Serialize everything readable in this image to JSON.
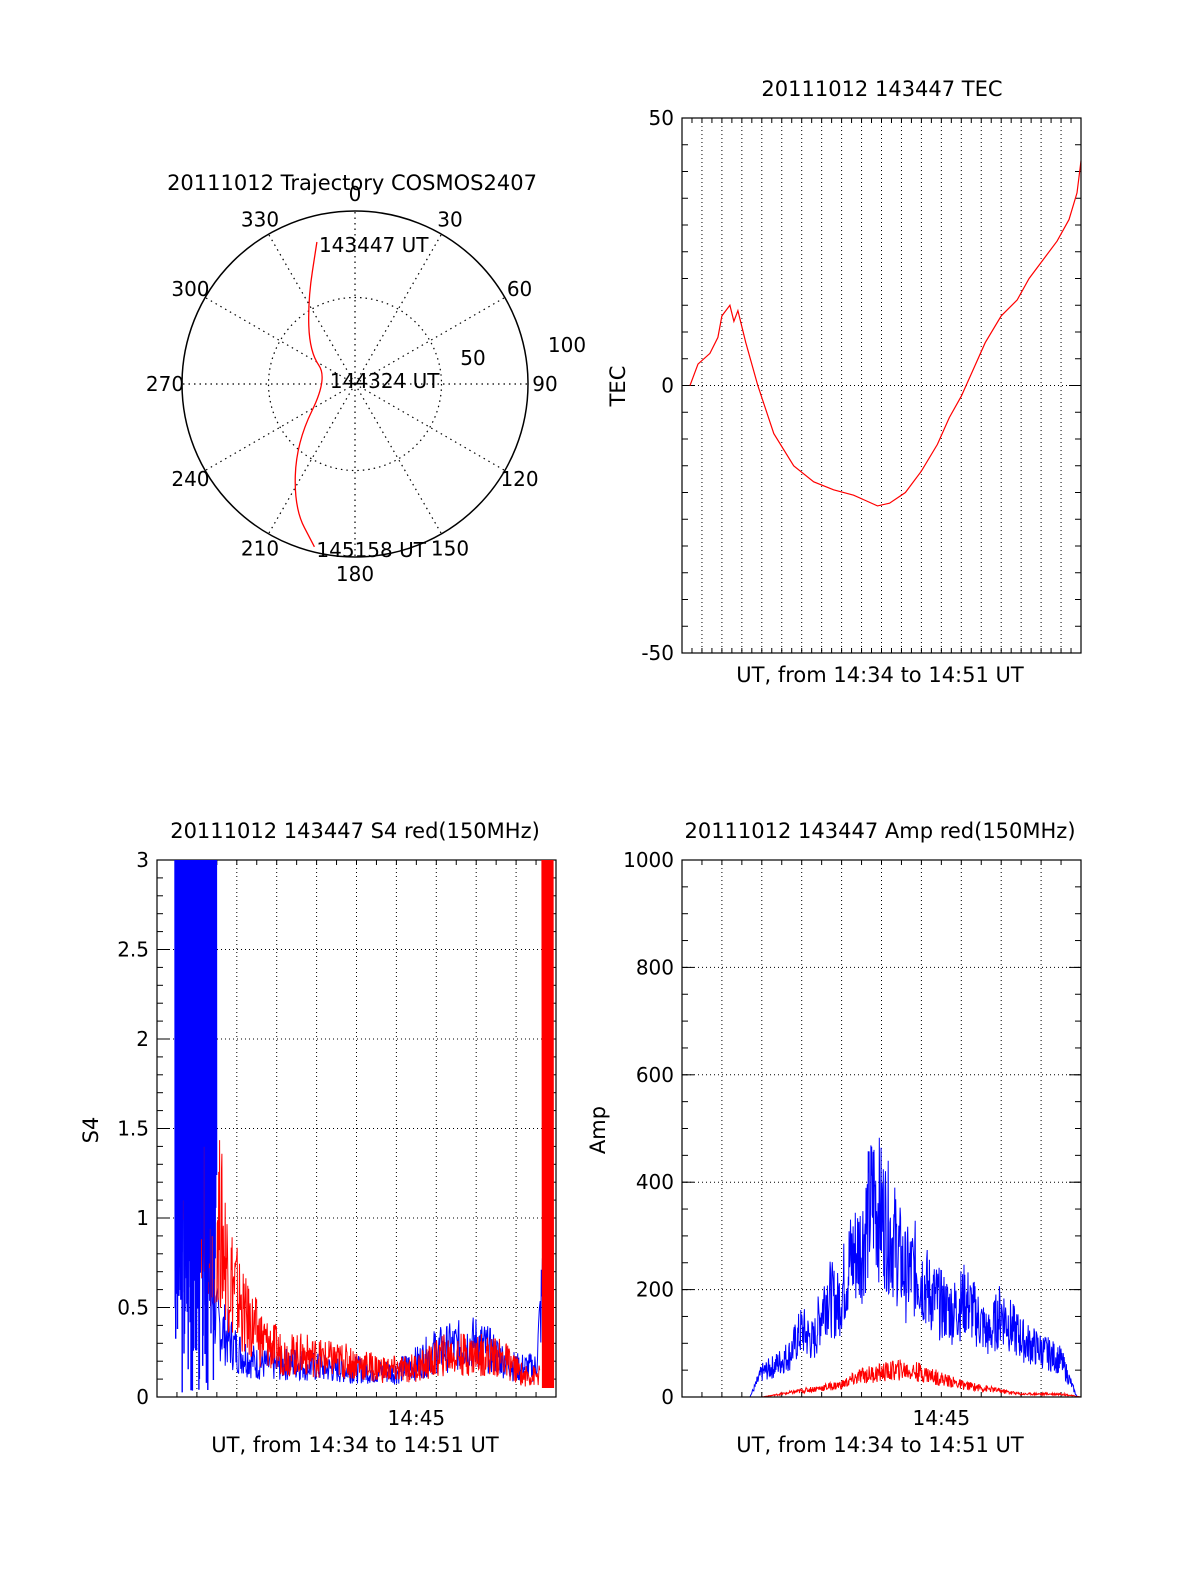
{
  "colors": {
    "red": "#ff0000",
    "blue": "#0000ff",
    "axis": "#000000",
    "grid": "#000000"
  },
  "chart_data": [
    {
      "id": "trajectory",
      "type": "polar",
      "title": "20111012 Trajectory COSMOS2407",
      "angle_labels": [
        "0",
        "30",
        "60",
        "90",
        "120",
        "150",
        "180",
        "210",
        "240",
        "270",
        "300",
        "330"
      ],
      "radial_labels": [
        "50",
        "100"
      ],
      "point_labels": [
        {
          "name": "start",
          "text": "143447 UT",
          "az": 345,
          "r": 85
        },
        {
          "name": "mid",
          "text": "144324 UT",
          "az": 282,
          "r": 16
        },
        {
          "name": "end",
          "text": "145158 UT",
          "az": 194,
          "r": 97
        }
      ],
      "trajectory_points": [
        [
          345,
          85
        ],
        [
          331,
          56
        ],
        [
          305,
          32
        ],
        [
          282,
          16
        ],
        [
          225,
          48
        ],
        [
          206,
          80
        ],
        [
          194,
          97
        ]
      ],
      "series_color": "red"
    },
    {
      "id": "tec",
      "type": "line",
      "title": "20111012 143447 TEC",
      "xlabel": "UT, from 14:34 to 14:51 UT",
      "ylabel": "TEC",
      "ylim": [
        -50,
        50
      ],
      "yticks": [
        "50",
        "0",
        "-50"
      ],
      "xlim": [
        0,
        1
      ],
      "grid": "x-dotted, y-zero-dotted",
      "series": [
        {
          "color": "red",
          "points": [
            [
              0.02,
              0
            ],
            [
              0.04,
              4
            ],
            [
              0.07,
              6
            ],
            [
              0.09,
              9
            ],
            [
              0.1,
              13
            ],
            [
              0.12,
              15
            ],
            [
              0.13,
              12
            ],
            [
              0.14,
              14
            ],
            [
              0.16,
              8
            ],
            [
              0.19,
              0
            ],
            [
              0.23,
              -9
            ],
            [
              0.28,
              -15
            ],
            [
              0.33,
              -18
            ],
            [
              0.38,
              -19.5
            ],
            [
              0.43,
              -20.5
            ],
            [
              0.46,
              -21.5
            ],
            [
              0.49,
              -22.5
            ],
            [
              0.52,
              -22
            ],
            [
              0.56,
              -20
            ],
            [
              0.6,
              -16
            ],
            [
              0.64,
              -11
            ],
            [
              0.67,
              -6
            ],
            [
              0.7,
              -2
            ],
            [
              0.73,
              3
            ],
            [
              0.76,
              8
            ],
            [
              0.8,
              13
            ],
            [
              0.84,
              16
            ],
            [
              0.87,
              20
            ],
            [
              0.91,
              24
            ],
            [
              0.94,
              27
            ],
            [
              0.97,
              31
            ],
            [
              0.99,
              36
            ],
            [
              1.0,
              42
            ]
          ]
        }
      ]
    },
    {
      "id": "s4",
      "type": "line",
      "title": "20111012 143447 S4 red(150MHz)",
      "xlabel": "UT, from 14:34 to 14:51 UT",
      "ylabel": "S4",
      "ylim": [
        0,
        3
      ],
      "yticks": [
        "0",
        "0.5",
        "1",
        "1.5",
        "2",
        "2.5",
        "3"
      ],
      "xticks": [
        "14:45"
      ],
      "xlim": [
        0,
        1
      ],
      "grid": "both dotted",
      "series": [
        {
          "color": "blue",
          "points": [
            [
              0.05,
              0.9
            ],
            [
              0.08,
              0.85
            ],
            [
              0.11,
              0.8
            ],
            [
              0.15,
              0.35
            ],
            [
              0.2,
              0.22
            ],
            [
              0.25,
              0.16
            ],
            [
              0.3,
              0.15
            ],
            [
              0.35,
              0.16
            ],
            [
              0.4,
              0.14
            ],
            [
              0.45,
              0.13
            ],
            [
              0.5,
              0.13
            ],
            [
              0.55,
              0.12
            ],
            [
              0.6,
              0.12
            ],
            [
              0.65,
              0.16
            ],
            [
              0.7,
              0.22
            ],
            [
              0.75,
              0.24
            ],
            [
              0.8,
              0.26
            ],
            [
              0.85,
              0.2
            ],
            [
              0.9,
              0.14
            ],
            [
              0.95,
              0.14
            ],
            [
              0.97,
              0.6
            ],
            [
              0.98,
              1.3
            ],
            [
              0.99,
              1.0
            ]
          ]
        },
        {
          "color": "red",
          "points": [
            [
              0.15,
              0.9
            ],
            [
              0.18,
              0.6
            ],
            [
              0.22,
              0.38
            ],
            [
              0.27,
              0.26
            ],
            [
              0.32,
              0.2
            ],
            [
              0.37,
              0.2
            ],
            [
              0.42,
              0.18
            ],
            [
              0.47,
              0.17
            ],
            [
              0.52,
              0.15
            ],
            [
              0.57,
              0.13
            ],
            [
              0.62,
              0.13
            ],
            [
              0.67,
              0.15
            ],
            [
              0.72,
              0.2
            ],
            [
              0.77,
              0.2
            ],
            [
              0.82,
              0.2
            ],
            [
              0.87,
              0.18
            ],
            [
              0.92,
              0.1
            ],
            [
              0.96,
              0.1
            ]
          ]
        }
      ]
    },
    {
      "id": "amp",
      "type": "line",
      "title": "20111012 143447 Amp red(150MHz)",
      "xlabel": "UT, from 14:34 to 14:51 UT",
      "ylabel": "Amp",
      "ylim": [
        0,
        1000
      ],
      "yticks": [
        "0",
        "200",
        "400",
        "600",
        "800",
        "1000"
      ],
      "xticks": [
        "14:45"
      ],
      "xlim": [
        0,
        1
      ],
      "grid": "both dotted",
      "series": [
        {
          "color": "blue",
          "points": [
            [
              0.0,
              0
            ],
            [
              0.17,
              0
            ],
            [
              0.2,
              40
            ],
            [
              0.23,
              50
            ],
            [
              0.27,
              70
            ],
            [
              0.3,
              110
            ],
            [
              0.33,
              90
            ],
            [
              0.36,
              170
            ],
            [
              0.39,
              150
            ],
            [
              0.42,
              220
            ],
            [
              0.45,
              250
            ],
            [
              0.48,
              330
            ],
            [
              0.5,
              300
            ],
            [
              0.53,
              260
            ],
            [
              0.56,
              200
            ],
            [
              0.59,
              210
            ],
            [
              0.62,
              170
            ],
            [
              0.65,
              150
            ],
            [
              0.68,
              140
            ],
            [
              0.71,
              160
            ],
            [
              0.74,
              130
            ],
            [
              0.77,
              100
            ],
            [
              0.8,
              140
            ],
            [
              0.83,
              110
            ],
            [
              0.86,
              90
            ],
            [
              0.89,
              80
            ],
            [
              0.92,
              70
            ],
            [
              0.95,
              60
            ],
            [
              0.97,
              30
            ],
            [
              0.99,
              0
            ],
            [
              1.0,
              0
            ]
          ]
        },
        {
          "color": "red",
          "points": [
            [
              0.0,
              0
            ],
            [
              0.2,
              0
            ],
            [
              0.25,
              5
            ],
            [
              0.3,
              10
            ],
            [
              0.35,
              15
            ],
            [
              0.4,
              20
            ],
            [
              0.45,
              35
            ],
            [
              0.5,
              40
            ],
            [
              0.55,
              45
            ],
            [
              0.6,
              40
            ],
            [
              0.65,
              30
            ],
            [
              0.7,
              20
            ],
            [
              0.75,
              15
            ],
            [
              0.8,
              10
            ],
            [
              0.85,
              5
            ],
            [
              0.9,
              5
            ],
            [
              0.95,
              5
            ],
            [
              1.0,
              0
            ]
          ]
        }
      ]
    }
  ]
}
